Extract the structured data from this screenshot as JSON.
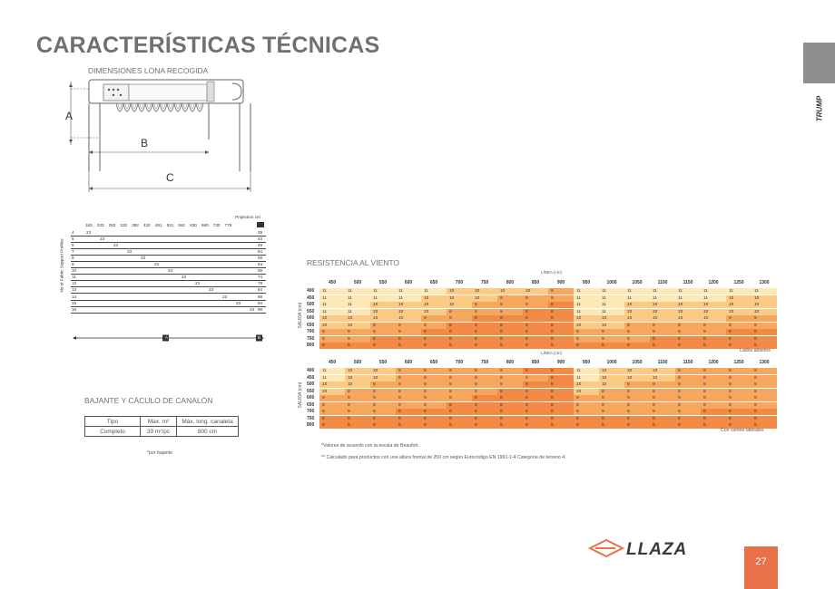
{
  "title": "CARACTERÍSTICAS TÉCNICAS",
  "side_tab": {
    "label": "TRUMP"
  },
  "page_number": "27",
  "dimensions": {
    "heading": "DIMENSIONES LONA RECOGIDA",
    "labels": {
      "a": "A",
      "b": "B",
      "c": "C"
    }
  },
  "projection_table": {
    "title": "Projection cm",
    "ylabel": "No of Fabric Support Profiles",
    "columns": [
      "183",
      "233",
      "283",
      "332",
      "382",
      "432",
      "481",
      "531",
      "581",
      "630",
      "680",
      "730",
      "779"
    ],
    "rows": [
      {
        "profiles": "4",
        "value": "23",
        "end": "39"
      },
      {
        "profiles": "5",
        "value": "23",
        "end": "44"
      },
      {
        "profiles": "6",
        "value": "23",
        "end": "49"
      },
      {
        "profiles": "7",
        "value": "23",
        "end": "54"
      },
      {
        "profiles": "8",
        "value": "23",
        "end": "59"
      },
      {
        "profiles": "9",
        "value": "23",
        "end": "64"
      },
      {
        "profiles": "10",
        "value": "23",
        "end": "69"
      },
      {
        "profiles": "11",
        "value": "23",
        "end": "74"
      },
      {
        "profiles": "12",
        "value": "23",
        "end": "79"
      },
      {
        "profiles": "13",
        "value": "23",
        "end": "84"
      },
      {
        "profiles": "14",
        "value": "23",
        "end": "89"
      },
      {
        "profiles": "15",
        "value": "23",
        "end": "94"
      },
      {
        "profiles": "16",
        "value": "23",
        "end": "99"
      }
    ],
    "markers": {
      "a": "A",
      "b": "B"
    }
  },
  "canal": {
    "heading": "BAJANTE Y CÁCULO DE CANALÓN",
    "headers": [
      "Tipo",
      "Max. m²",
      "Máx. long. canaleta"
    ],
    "row": [
      "Completo",
      "39 m²/pc",
      "800 cm"
    ],
    "note": "*por bajante"
  },
  "wind": {
    "heading": "RESISTENCIA AL VIENTO",
    "linea_label": "LÍNEA (cm)",
    "salida_label": "SALIDA (cm)",
    "columns": [
      "450",
      "500",
      "550",
      "600",
      "650",
      "700",
      "750",
      "800",
      "850",
      "900",
      "950",
      "1000",
      "1050",
      "1100",
      "1150",
      "1200",
      "1250",
      "1300"
    ],
    "rows": [
      "400",
      "450",
      "500",
      "550",
      "600",
      "650",
      "700",
      "750",
      "800"
    ],
    "colors": {
      "11": "#fde9b8",
      "10": "#fbcb86",
      "9": "#f7a65e",
      "8": "#f28a45"
    },
    "table1": {
      "caption": "Lados abiertos",
      "values": [
        [
          11,
          11,
          11,
          11,
          11,
          10,
          10,
          10,
          10,
          9,
          11,
          11,
          11,
          11,
          11,
          11,
          11,
          11
        ],
        [
          11,
          11,
          11,
          11,
          10,
          10,
          10,
          9,
          9,
          9,
          11,
          11,
          11,
          11,
          11,
          11,
          10,
          10
        ],
        [
          11,
          11,
          10,
          10,
          10,
          10,
          9,
          9,
          9,
          8,
          11,
          11,
          10,
          10,
          10,
          10,
          10,
          10
        ],
        [
          11,
          11,
          10,
          10,
          10,
          9,
          9,
          9,
          8,
          8,
          11,
          11,
          10,
          10,
          10,
          10,
          10,
          10
        ],
        [
          10,
          10,
          10,
          10,
          9,
          9,
          8,
          8,
          8,
          8,
          10,
          10,
          10,
          10,
          10,
          10,
          9,
          9
        ],
        [
          10,
          10,
          9,
          9,
          9,
          8,
          8,
          8,
          8,
          8,
          10,
          10,
          9,
          9,
          9,
          9,
          9,
          9
        ],
        [
          9,
          9,
          9,
          9,
          8,
          8,
          8,
          8,
          8,
          8,
          9,
          9,
          9,
          9,
          9,
          9,
          8,
          8
        ],
        [
          9,
          9,
          8,
          8,
          8,
          8,
          8,
          8,
          8,
          8,
          9,
          9,
          9,
          8,
          8,
          8,
          8,
          8
        ],
        [
          8,
          8,
          8,
          8,
          8,
          8,
          8,
          8,
          8,
          8,
          8,
          8,
          8,
          8,
          8,
          8,
          8,
          8
        ]
      ]
    },
    "table2": {
      "caption": "Con cierres laterales",
      "values": [
        [
          11,
          10,
          10,
          9,
          9,
          9,
          9,
          9,
          8,
          8,
          11,
          10,
          10,
          10,
          9,
          9,
          9,
          9
        ],
        [
          11,
          10,
          10,
          9,
          9,
          9,
          9,
          9,
          9,
          8,
          11,
          10,
          10,
          10,
          9,
          9,
          9,
          9
        ],
        [
          10,
          10,
          9,
          9,
          9,
          9,
          9,
          9,
          8,
          8,
          10,
          10,
          9,
          9,
          9,
          9,
          9,
          9
        ],
        [
          10,
          9,
          9,
          9,
          9,
          9,
          9,
          8,
          8,
          8,
          10,
          9,
          9,
          9,
          9,
          9,
          9,
          9
        ],
        [
          9,
          9,
          9,
          9,
          9,
          9,
          8,
          8,
          8,
          8,
          9,
          9,
          9,
          9,
          9,
          9,
          9,
          9
        ],
        [
          9,
          9,
          9,
          9,
          9,
          8,
          8,
          8,
          8,
          8,
          9,
          9,
          9,
          9,
          9,
          9,
          9,
          9
        ],
        [
          9,
          9,
          9,
          8,
          8,
          8,
          8,
          8,
          8,
          8,
          9,
          9,
          9,
          9,
          9,
          8,
          8,
          8
        ],
        [
          8,
          8,
          8,
          8,
          8,
          8,
          8,
          8,
          8,
          8,
          8,
          8,
          8,
          8,
          8,
          8,
          8,
          8
        ],
        [
          8,
          8,
          8,
          8,
          8,
          8,
          8,
          8,
          8,
          8,
          8,
          8,
          8,
          8,
          8,
          8,
          8,
          8
        ]
      ]
    },
    "notes": [
      "*Valores de acuerdo con la escala de Beaufort.",
      "** Calculado para productos con una altura frontal de 250 cm según Eurocódigo EN 1991-1-4 Categoría de terreno 4."
    ]
  },
  "logo": {
    "text": "LLAZA"
  }
}
